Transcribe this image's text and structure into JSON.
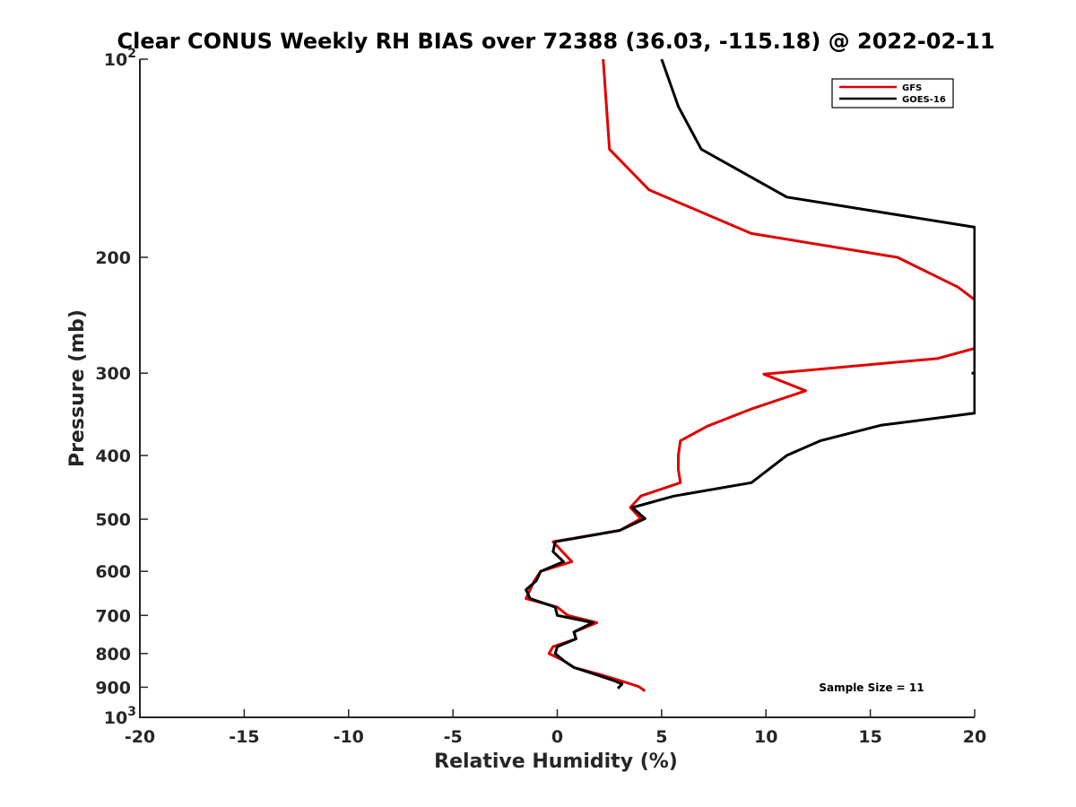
{
  "chart_data": {
    "type": "line",
    "title": "Clear CONUS Weekly RH BIAS over 72388 (36.03, -115.18) @ 2022-02-11",
    "xlabel": "Relative Humidity (%)",
    "ylabel": "Pressure (mb)",
    "xlim": [
      -20,
      20
    ],
    "ylim": [
      1000,
      100
    ],
    "yscale": "log",
    "grid": false,
    "x_ticks": [
      -20,
      -15,
      -10,
      -5,
      0,
      5,
      10,
      15,
      20
    ],
    "y_ticks": [
      {
        "value": 100,
        "label": "10",
        "sup": "2"
      },
      {
        "value": 200,
        "label": "200",
        "sup": ""
      },
      {
        "value": 300,
        "label": "300",
        "sup": ""
      },
      {
        "value": 400,
        "label": "400",
        "sup": ""
      },
      {
        "value": 500,
        "label": "500",
        "sup": ""
      },
      {
        "value": 600,
        "label": "600",
        "sup": ""
      },
      {
        "value": 700,
        "label": "700",
        "sup": ""
      },
      {
        "value": 800,
        "label": "800",
        "sup": ""
      },
      {
        "value": 900,
        "label": "900",
        "sup": ""
      },
      {
        "value": 1000,
        "label": "10",
        "sup": "3"
      }
    ],
    "legend_position": "top-right",
    "annotation": "Sample Size = 11",
    "series": [
      {
        "name": "GFS",
        "color": "#e00000",
        "points": [
          [
            2.2,
            100
          ],
          [
            2.5,
            137
          ],
          [
            4.4,
            158
          ],
          [
            9.3,
            184
          ],
          [
            16.3,
            200
          ],
          [
            19.2,
            222
          ],
          [
            20.0,
            232
          ],
          [
            20.0,
            275
          ],
          [
            18.2,
            285
          ],
          [
            9.9,
            301
          ],
          [
            11.9,
            319
          ],
          [
            9.3,
            340
          ],
          [
            7.2,
            361
          ],
          [
            5.9,
            380
          ],
          [
            5.8,
            400
          ],
          [
            5.8,
            420
          ],
          [
            5.9,
            440
          ],
          [
            4.0,
            461
          ],
          [
            3.5,
            480
          ],
          [
            4.0,
            499
          ],
          [
            3.0,
            520
          ],
          [
            -0.2,
            541
          ],
          [
            0.7,
            580
          ],
          [
            -0.8,
            600
          ],
          [
            -1.1,
            620
          ],
          [
            -1.3,
            640
          ],
          [
            -1.5,
            660
          ],
          [
            0.0,
            680
          ],
          [
            0.5,
            700
          ],
          [
            1.9,
            718
          ],
          [
            0.8,
            742
          ],
          [
            0.9,
            760
          ],
          [
            -0.2,
            781
          ],
          [
            -0.4,
            800
          ],
          [
            0.3,
            820
          ],
          [
            0.8,
            840
          ],
          [
            2.0,
            860
          ],
          [
            3.0,
            879
          ],
          [
            3.9,
            898
          ],
          [
            4.2,
            912
          ]
        ]
      },
      {
        "name": "GOES-16",
        "color": "#000000",
        "points": [
          [
            5.0,
            100
          ],
          [
            5.8,
            118
          ],
          [
            6.9,
            137
          ],
          [
            11.0,
            162
          ],
          [
            20.0,
            180
          ],
          [
            20.0,
            300
          ],
          [
            20.0,
            345
          ],
          [
            15.5,
            360
          ],
          [
            12.6,
            380
          ],
          [
            11.0,
            400
          ],
          [
            9.3,
            440
          ],
          [
            5.6,
            461
          ],
          [
            3.6,
            480
          ],
          [
            4.2,
            499
          ],
          [
            3.0,
            520
          ],
          [
            -0.1,
            541
          ],
          [
            -0.2,
            560
          ],
          [
            0.3,
            580
          ],
          [
            -0.8,
            600
          ],
          [
            -1.0,
            620
          ],
          [
            -1.5,
            640
          ],
          [
            -1.3,
            660
          ],
          [
            -0.1,
            680
          ],
          [
            0.0,
            700
          ],
          [
            1.7,
            718
          ],
          [
            0.8,
            742
          ],
          [
            0.9,
            760
          ],
          [
            0.0,
            781
          ],
          [
            -0.1,
            800
          ],
          [
            0.3,
            820
          ],
          [
            0.8,
            840
          ],
          [
            1.8,
            860
          ],
          [
            2.7,
            879
          ],
          [
            3.1,
            890
          ],
          [
            2.9,
            904
          ]
        ]
      }
    ]
  }
}
